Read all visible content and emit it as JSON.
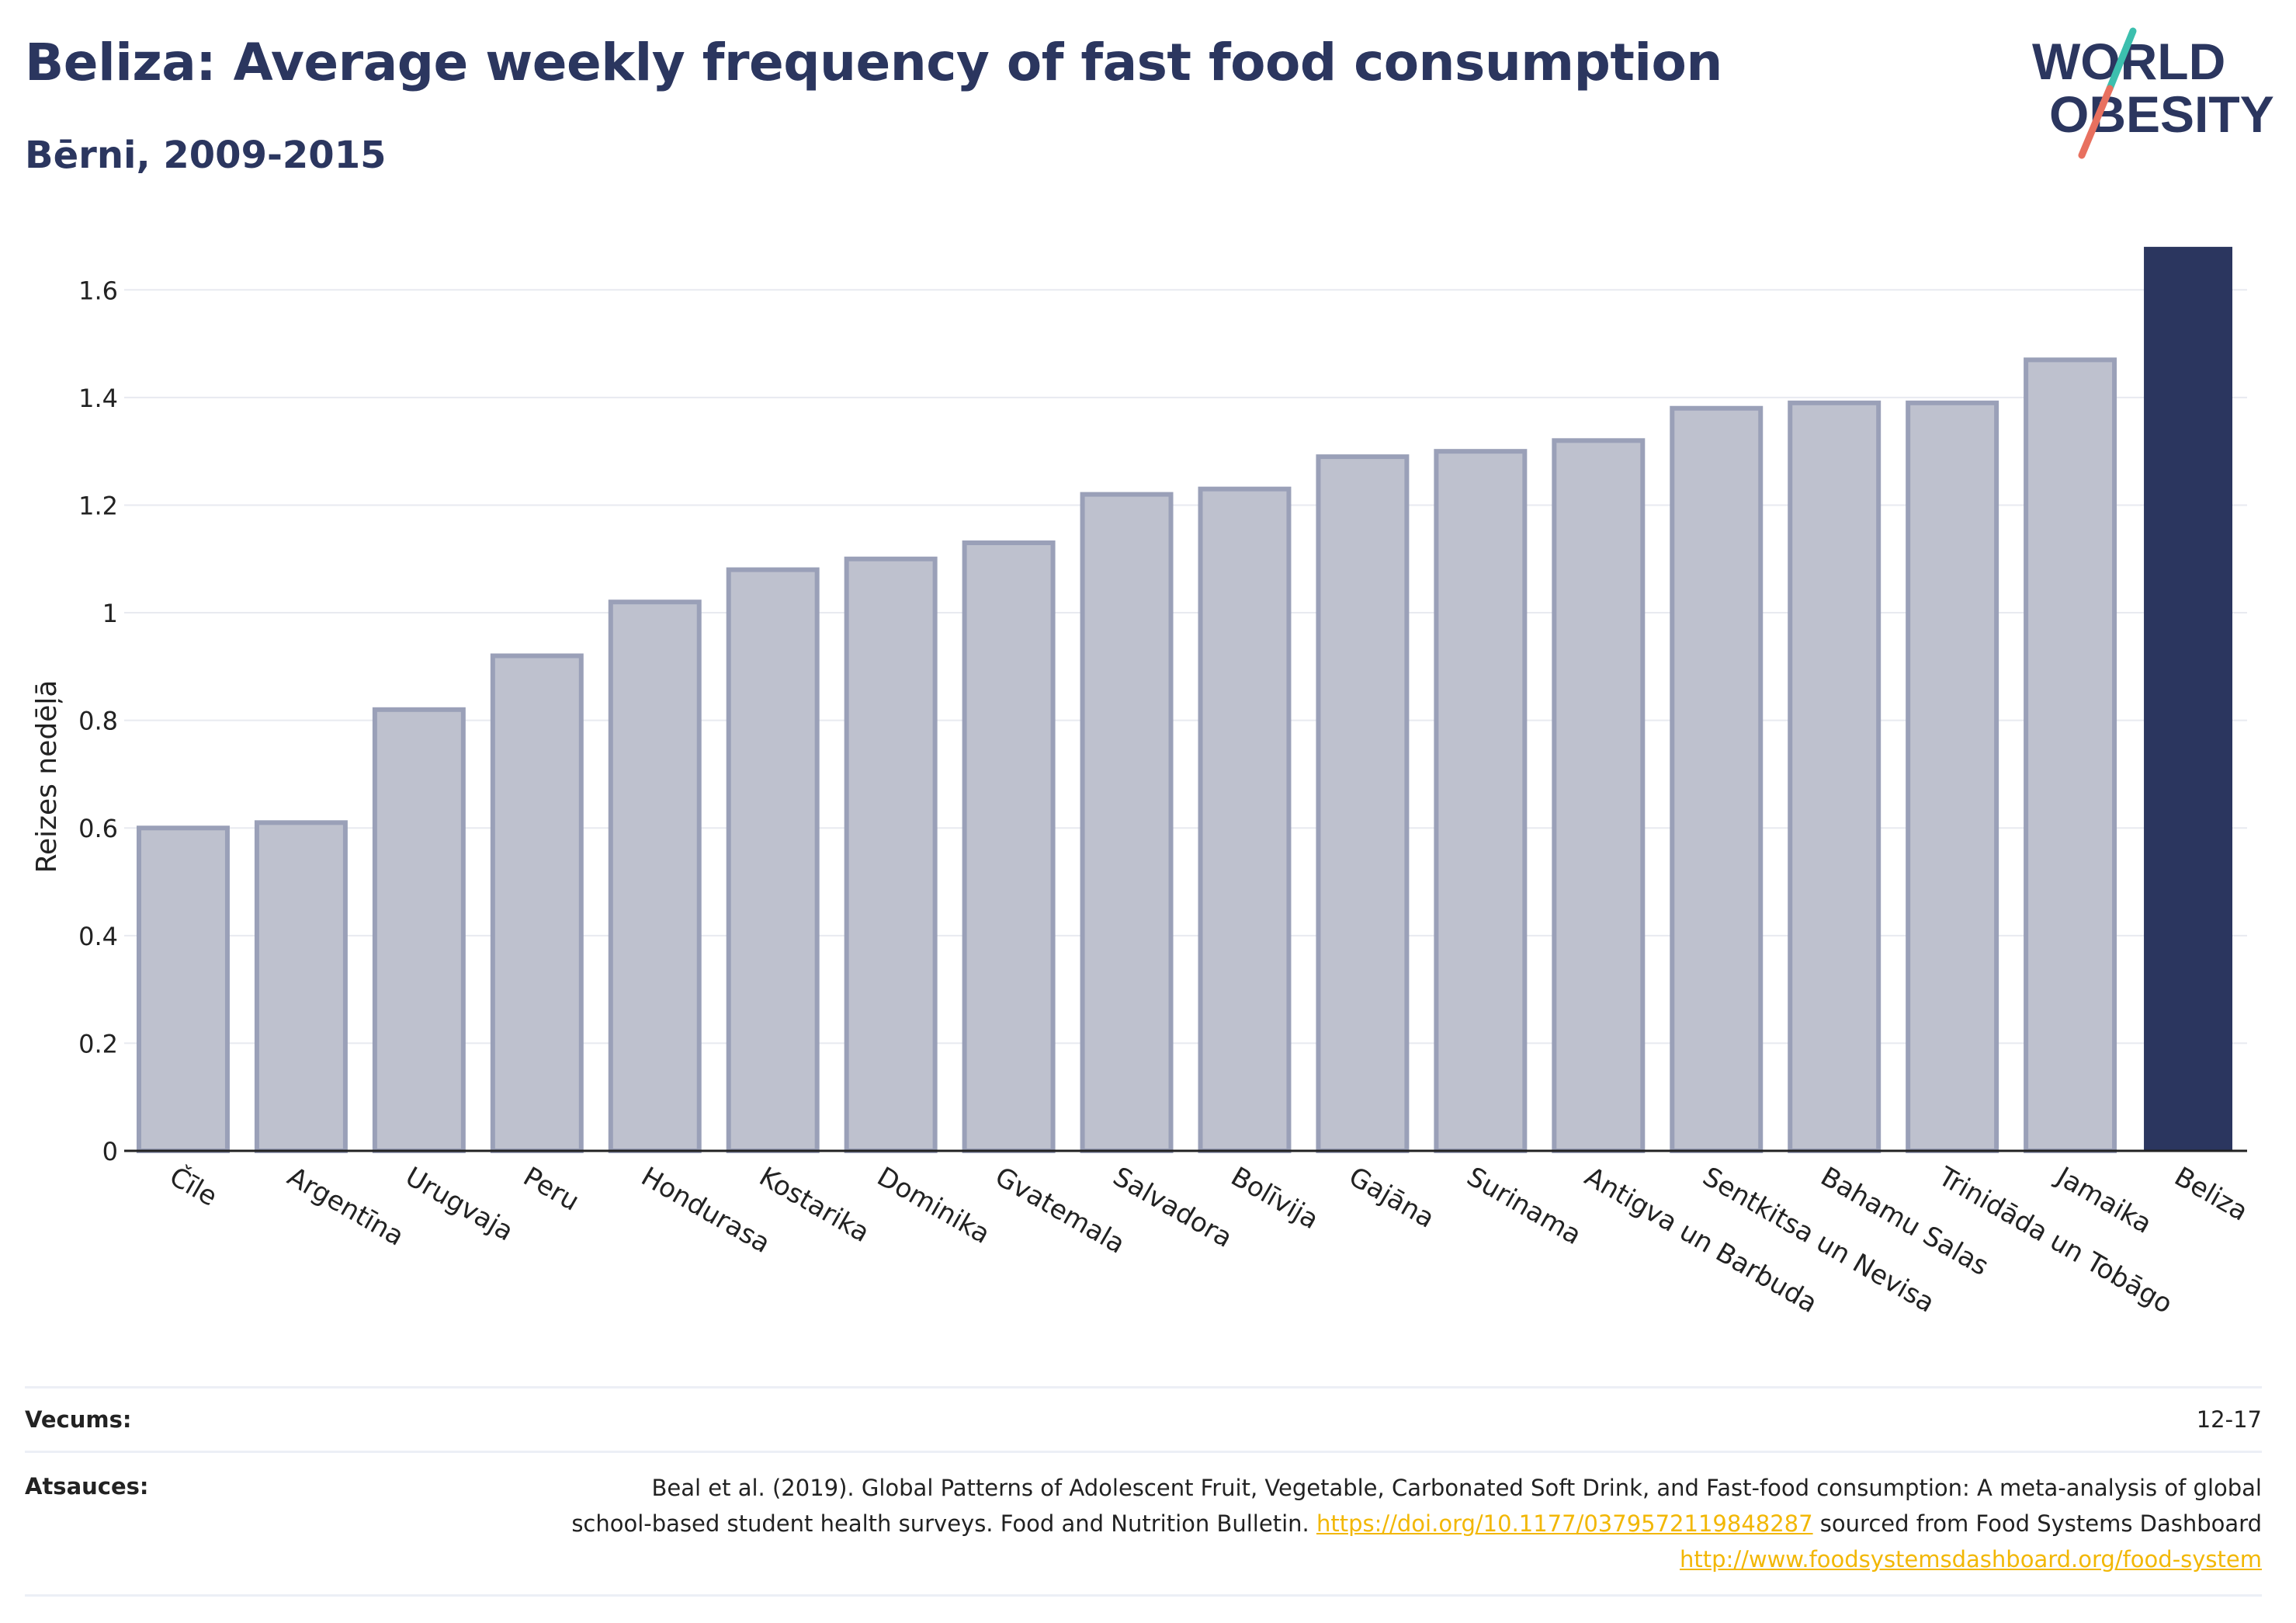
{
  "header": {
    "title": "Beliza: Average weekly frequency of fast food consumption",
    "subtitle": "Bērni, 2009-2015"
  },
  "logo": {
    "line1": "WORLD",
    "line2": "OBESITY"
  },
  "colors": {
    "highlight": "#2b365f",
    "bar_fill": "#bec1ce",
    "bar_stroke": "#9aa0b8",
    "grid": "#e8eaf0",
    "logo_teal": "#3cbfae",
    "logo_coral": "#e8705f"
  },
  "chart_data": {
    "type": "bar",
    "ylabel": "Reizes nedēļā",
    "ylim": [
      0,
      1.7
    ],
    "yticks": [
      0,
      0.2,
      0.4,
      0.6,
      0.8,
      1,
      1.2,
      1.4,
      1.6
    ],
    "ytick_labels": [
      "0",
      "0.2",
      "0.4",
      "0.6",
      "0.8",
      "1",
      "1.2",
      "1.4",
      "1.6"
    ],
    "grid": true,
    "highlight": "Beliza",
    "categories": [
      "Čīle",
      "Argentīna",
      "Urugvaja",
      "Peru",
      "Hondurasa",
      "Kostarika",
      "Dominika",
      "Gvatemala",
      "Salvadora",
      "Bolīvija",
      "Gajāna",
      "Surinama",
      "Antigva un Barbuda",
      "Sentkitsa un Nevisa",
      "Bahamu Salas",
      "Trinidāda un Tobāgo",
      "Jamaika",
      "Beliza"
    ],
    "values": [
      0.6,
      0.61,
      0.82,
      0.92,
      1.02,
      1.08,
      1.1,
      1.13,
      1.22,
      1.23,
      1.29,
      1.3,
      1.32,
      1.38,
      1.39,
      1.39,
      1.47,
      1.68
    ]
  },
  "footer": {
    "age_label": "Vecums:",
    "age_value": "12-17",
    "sources_label": "Atsauces:",
    "sources_text_1": "Beal et al. (2019). Global Patterns of Adolescent Fruit, Vegetable, Carbonated Soft Drink, and Fast-food consumption: A meta-analysis of global school-based student health surveys. Food and Nutrition Bulletin. ",
    "sources_link_1": "https://doi.org/10.1177/0379572119848287",
    "sources_text_2": " sourced from Food Systems Dashboard ",
    "sources_link_2": "http://www.foodsystemsdashboard.org/food-system"
  }
}
